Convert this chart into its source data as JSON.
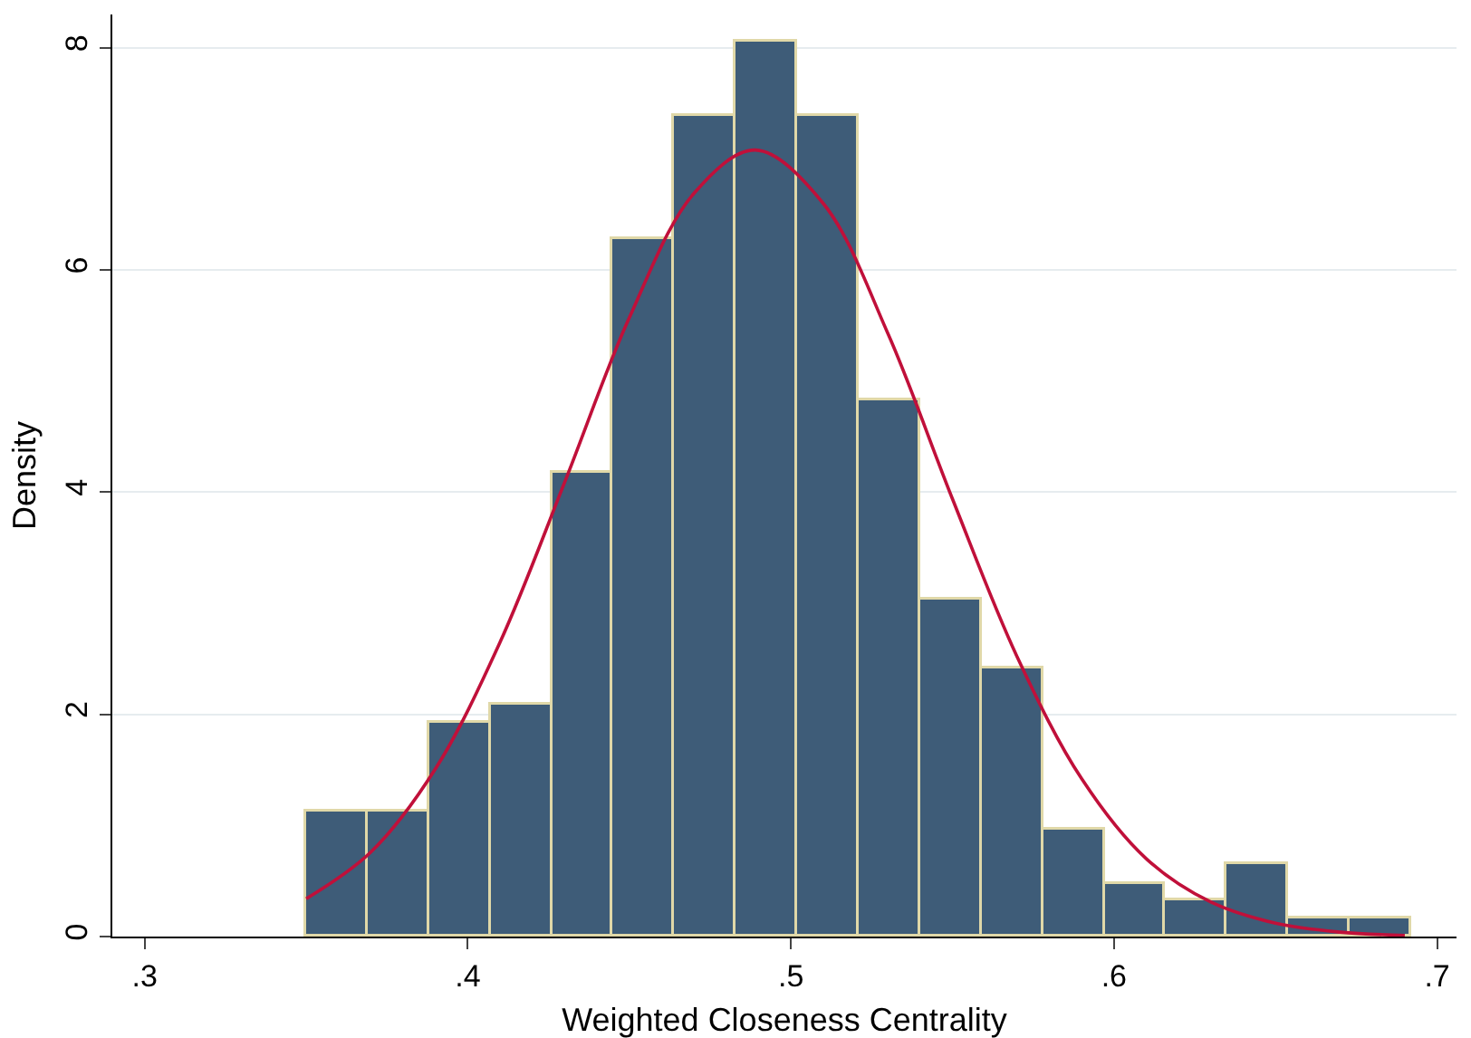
{
  "chart_data": {
    "type": "histogram",
    "xlabel": "Weighted Closeness Centrality",
    "ylabel": "Density",
    "bins": [
      0.35,
      0.369,
      0.388,
      0.407,
      0.426,
      0.445,
      0.464,
      0.483,
      0.502,
      0.521,
      0.54,
      0.559,
      0.578,
      0.597,
      0.616,
      0.635,
      0.654,
      0.673,
      0.692
    ],
    "values": [
      1.13,
      1.13,
      1.93,
      2.09,
      4.18,
      6.27,
      7.38,
      8.05,
      7.38,
      4.83,
      3.04,
      2.41,
      0.96,
      0.47,
      0.32,
      0.65,
      0.16,
      0.16
    ],
    "color": "#3e5c78",
    "series": [
      {
        "type": "line",
        "color": "#c0103a",
        "x": [
          0.35,
          0.37,
          0.39,
          0.41,
          0.43,
          0.45,
          0.47,
          0.489,
          0.51,
          0.53,
          0.55,
          0.57,
          0.59,
          0.61,
          0.63,
          0.65,
          0.67,
          0.69
        ],
        "values": [
          0.34,
          0.76,
          1.51,
          2.65,
          4.09,
          5.57,
          6.69,
          7.08,
          6.6,
          5.43,
          3.94,
          2.52,
          1.42,
          0.7,
          0.31,
          0.12,
          0.04,
          0.01
        ]
      }
    ],
    "xlim": [
      0.29,
      0.706
    ],
    "xticks": [
      {
        "value": 0.3,
        "label": ".3"
      },
      {
        "value": 0.4,
        "label": ".4"
      },
      {
        "value": 0.5,
        "label": ".5"
      },
      {
        "value": 0.6,
        "label": ".6"
      },
      {
        "value": 0.7,
        "label": ".7"
      }
    ],
    "ylim": [
      0,
      8.3
    ],
    "yticks": [
      0,
      2,
      4,
      6,
      8
    ],
    "grid": "y"
  }
}
